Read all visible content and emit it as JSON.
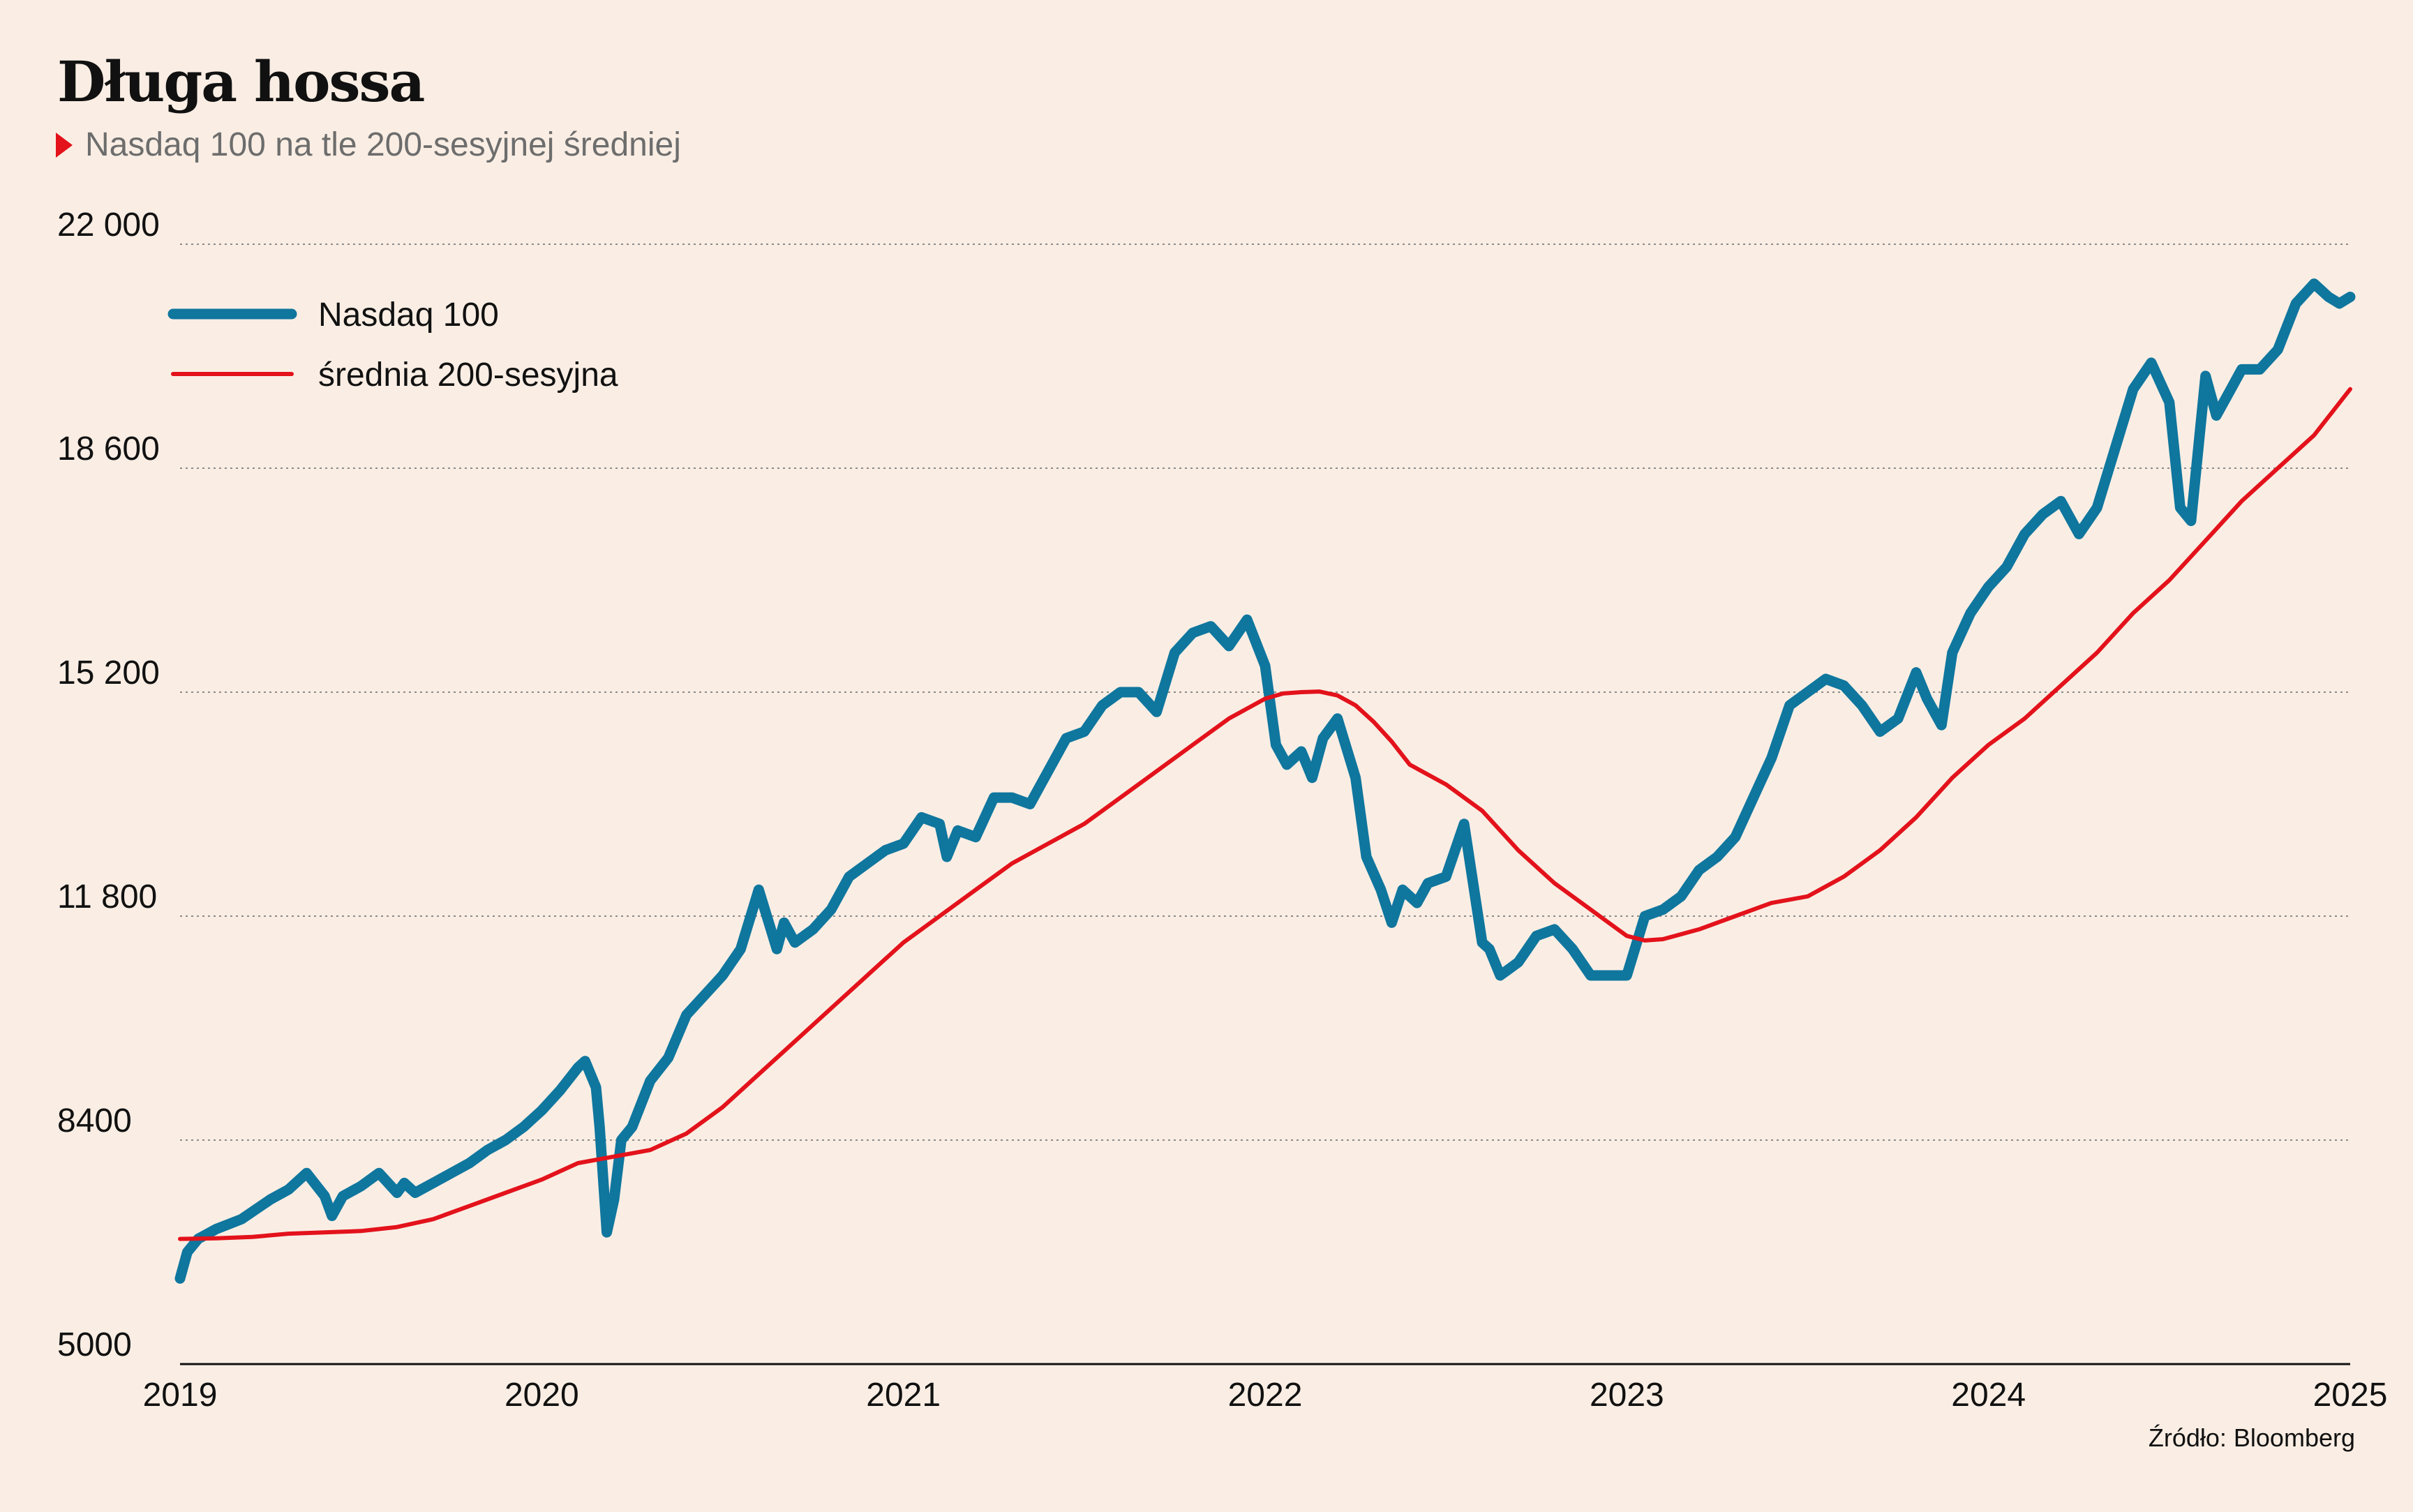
{
  "header": {
    "title": "Długa hossa",
    "subtitle": "Nasdaq 100 na tle 200-sesyjnej średniej"
  },
  "source": "Źródło: Bloomberg",
  "colors": {
    "nasdaq": "#0f769e",
    "ma": "#e3121b",
    "background": "#faeee4",
    "grid": "#8a8a8a"
  },
  "chart_data": {
    "type": "line",
    "title": "Długa hossa",
    "subtitle": "Nasdaq 100 na tle 200-sesyjnej średniej",
    "xlabel": "",
    "ylabel": "",
    "xlim": [
      2019,
      2025
    ],
    "ylim": [
      5000,
      22000
    ],
    "x_ticks": [
      2019,
      2020,
      2021,
      2022,
      2023,
      2024,
      2025
    ],
    "x_tick_labels": [
      "2019",
      "2020",
      "2021",
      "2022",
      "2023",
      "2024",
      "2025"
    ],
    "y_ticks": [
      5000,
      8400,
      11800,
      15200,
      18600,
      22000
    ],
    "y_tick_labels": [
      "5000",
      "8400",
      "11 800",
      "15 200",
      "18 600",
      "22 000"
    ],
    "grid": "horizontal dotted",
    "legend": "top-left",
    "series": [
      {
        "name": "Nasdaq 100",
        "color": "#0f769e",
        "x": [
          2019.0,
          2019.02,
          2019.05,
          2019.1,
          2019.17,
          2019.25,
          2019.3,
          2019.35,
          2019.4,
          2019.42,
          2019.45,
          2019.5,
          2019.55,
          2019.6,
          2019.62,
          2019.65,
          2019.7,
          2019.75,
          2019.8,
          2019.85,
          2019.9,
          2019.95,
          2020.0,
          2020.05,
          2020.1,
          2020.12,
          2020.15,
          2020.16,
          2020.18,
          2020.2,
          2020.22,
          2020.25,
          2020.3,
          2020.35,
          2020.4,
          2020.45,
          2020.5,
          2020.55,
          2020.6,
          2020.65,
          2020.67,
          2020.7,
          2020.75,
          2020.8,
          2020.85,
          2020.9,
          2020.95,
          2021.0,
          2021.05,
          2021.1,
          2021.12,
          2021.15,
          2021.2,
          2021.25,
          2021.3,
          2021.35,
          2021.4,
          2021.45,
          2021.5,
          2021.55,
          2021.6,
          2021.65,
          2021.7,
          2021.75,
          2021.8,
          2021.85,
          2021.9,
          2021.95,
          2022.0,
          2022.03,
          2022.06,
          2022.1,
          2022.13,
          2022.16,
          2022.2,
          2022.25,
          2022.28,
          2022.32,
          2022.35,
          2022.38,
          2022.42,
          2022.45,
          2022.5,
          2022.55,
          2022.6,
          2022.62,
          2022.65,
          2022.7,
          2022.75,
          2022.8,
          2022.85,
          2022.9,
          2022.95,
          2023.0,
          2023.05,
          2023.1,
          2023.15,
          2023.2,
          2023.25,
          2023.3,
          2023.35,
          2023.4,
          2023.45,
          2023.5,
          2023.55,
          2023.6,
          2023.65,
          2023.7,
          2023.75,
          2023.8,
          2023.83,
          2023.87,
          2023.9,
          2023.95,
          2024.0,
          2024.05,
          2024.1,
          2024.15,
          2024.2,
          2024.25,
          2024.3,
          2024.35,
          2024.4,
          2024.45,
          2024.5,
          2024.53,
          2024.56,
          2024.6,
          2024.63,
          2024.67,
          2024.7,
          2024.75,
          2024.8,
          2024.85,
          2024.9,
          2024.94,
          2024.97,
          2025.0
        ],
        "y": [
          6300,
          6700,
          6900,
          7050,
          7200,
          7500,
          7650,
          7900,
          7550,
          7250,
          7550,
          7700,
          7900,
          7600,
          7750,
          7600,
          7750,
          7900,
          8050,
          8250,
          8400,
          8600,
          8850,
          9150,
          9500,
          9600,
          9200,
          8600,
          7000,
          7500,
          8400,
          8600,
          9300,
          9650,
          10300,
          10600,
          10900,
          11300,
          12200,
          11300,
          11700,
          11400,
          11600,
          11900,
          12400,
          12600,
          12800,
          12900,
          13300,
          13200,
          12700,
          13100,
          13000,
          13600,
          13600,
          13500,
          14000,
          14500,
          14600,
          15000,
          15200,
          15200,
          14900,
          15800,
          16100,
          16200,
          15900,
          16300,
          15600,
          14400,
          14100,
          14300,
          13900,
          14500,
          14800,
          13900,
          12700,
          12200,
          11700,
          12200,
          12000,
          12300,
          12400,
          13200,
          11400,
          11300,
          10900,
          11100,
          11500,
          11600,
          11300,
          10900,
          10900,
          10900,
          11800,
          11900,
          12100,
          12500,
          12700,
          13000,
          13600,
          14200,
          15000,
          15200,
          15400,
          15300,
          15000,
          14600,
          14800,
          15500,
          15100,
          14700,
          15800,
          16400,
          16800,
          17100,
          17600,
          17900,
          18100,
          17600,
          18000,
          18900,
          19800,
          20200,
          19600,
          18000,
          17800,
          20000,
          19400,
          19800,
          20100,
          20100,
          20400,
          21100,
          21400,
          21200,
          21100,
          21200
        ]
      },
      {
        "name": "średnia 200-sesyjna",
        "color": "#e3121b",
        "x": [
          2019.0,
          2019.1,
          2019.2,
          2019.3,
          2019.4,
          2019.5,
          2019.6,
          2019.7,
          2019.8,
          2019.9,
          2020.0,
          2020.1,
          2020.2,
          2020.3,
          2020.4,
          2020.5,
          2020.6,
          2020.7,
          2020.8,
          2020.9,
          2021.0,
          2021.1,
          2021.2,
          2021.3,
          2021.4,
          2021.5,
          2021.6,
          2021.7,
          2021.8,
          2021.9,
          2022.0,
          2022.05,
          2022.1,
          2022.15,
          2022.2,
          2022.25,
          2022.3,
          2022.35,
          2022.4,
          2022.5,
          2022.6,
          2022.7,
          2022.8,
          2022.9,
          2023.0,
          2023.05,
          2023.1,
          2023.2,
          2023.3,
          2023.4,
          2023.5,
          2023.6,
          2023.7,
          2023.8,
          2023.9,
          2024.0,
          2024.1,
          2024.2,
          2024.3,
          2024.4,
          2024.5,
          2024.6,
          2024.7,
          2024.8,
          2024.9,
          2025.0
        ],
        "y": [
          6900,
          6910,
          6930,
          6980,
          7000,
          7020,
          7080,
          7200,
          7400,
          7600,
          7800,
          8050,
          8150,
          8250,
          8500,
          8900,
          9400,
          9900,
          10400,
          10900,
          11400,
          11800,
          12200,
          12600,
          12900,
          13200,
          13600,
          14000,
          14400,
          14800,
          15100,
          15180,
          15200,
          15210,
          15150,
          15000,
          14750,
          14450,
          14100,
          13800,
          13400,
          12800,
          12300,
          11900,
          11500,
          11430,
          11450,
          11600,
          11800,
          12000,
          12100,
          12400,
          12800,
          13300,
          13900,
          14400,
          14800,
          15300,
          15800,
          16400,
          16900,
          17500,
          18100,
          18600,
          19100,
          19800
        ]
      }
    ]
  }
}
